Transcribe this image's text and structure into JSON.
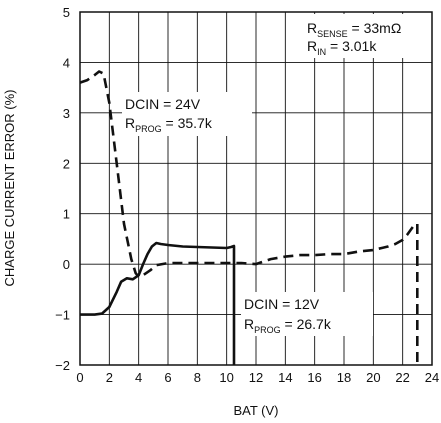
{
  "chart_data": {
    "type": "line",
    "title": "",
    "xlabel": "BAT (V)",
    "ylabel": "CHARGE CURRENT ERROR (%)",
    "xlim": [
      0,
      24
    ],
    "ylim": [
      -2,
      5
    ],
    "x_ticks": [
      "0",
      "2",
      "4",
      "6",
      "8",
      "10",
      "12",
      "14",
      "16",
      "18",
      "20",
      "22",
      "24"
    ],
    "y_ticks": [
      "−2",
      "−1",
      "0",
      "1",
      "2",
      "3",
      "4",
      "5"
    ],
    "grid": true,
    "annotations": {
      "sense": {
        "text": "R",
        "sub": "SENSE",
        "rest": " = 33mΩ"
      },
      "rin": {
        "text": "R",
        "sub": "IN",
        "rest": " = 3.01k"
      },
      "dcin24": "DCIN = 24V",
      "rprog24": {
        "text": "R",
        "sub": "PROG",
        "rest": " = 35.7k"
      },
      "dcin12": "DCIN = 12V",
      "rprog12": {
        "text": "R",
        "sub": "PROG",
        "rest": " = 26.7k"
      }
    },
    "series": [
      {
        "style": "dashed",
        "color": "#111111",
        "x": [
          0,
          0.5,
          1.0,
          1.3,
          1.6,
          2.0,
          2.5,
          3.0,
          3.5,
          3.8,
          4.0,
          4.3,
          4.8,
          5.2,
          5.6,
          6.0,
          7.0,
          8.0,
          9.0,
          10.0,
          11.0,
          11.5,
          12.0,
          12.5,
          13.0,
          14.0,
          15.0,
          16.0,
          17.0,
          18.0,
          19.0,
          20.0,
          21.0,
          21.5,
          22.0,
          22.3,
          22.6,
          22.8,
          23.0,
          23.0,
          23.0
        ],
        "y": [
          3.6,
          3.65,
          3.75,
          3.82,
          3.78,
          3.2,
          2.0,
          0.8,
          0.1,
          -0.18,
          -0.25,
          -0.22,
          -0.12,
          -0.02,
          0.0,
          0.02,
          0.02,
          0.02,
          0.02,
          0.02,
          0.02,
          0.01,
          0.0,
          0.05,
          0.1,
          0.15,
          0.18,
          0.18,
          0.2,
          0.2,
          0.25,
          0.28,
          0.35,
          0.4,
          0.48,
          0.58,
          0.7,
          0.78,
          0.8,
          0.3,
          -2.0
        ]
      },
      {
        "style": "solid",
        "color": "#111111",
        "x": [
          0,
          0.6,
          1.0,
          1.5,
          2.0,
          2.5,
          2.8,
          3.2,
          3.6,
          4.0,
          4.3,
          4.6,
          4.9,
          5.2,
          5.5,
          6.0,
          7.0,
          8.0,
          9.0,
          10.0,
          10.3,
          10.5,
          10.5
        ],
        "y": [
          -1.0,
          -1.0,
          -1.0,
          -0.98,
          -0.85,
          -0.55,
          -0.35,
          -0.28,
          -0.3,
          -0.22,
          0.0,
          0.2,
          0.35,
          0.42,
          0.4,
          0.38,
          0.35,
          0.34,
          0.33,
          0.32,
          0.34,
          0.36,
          -2.0
        ]
      }
    ]
  }
}
